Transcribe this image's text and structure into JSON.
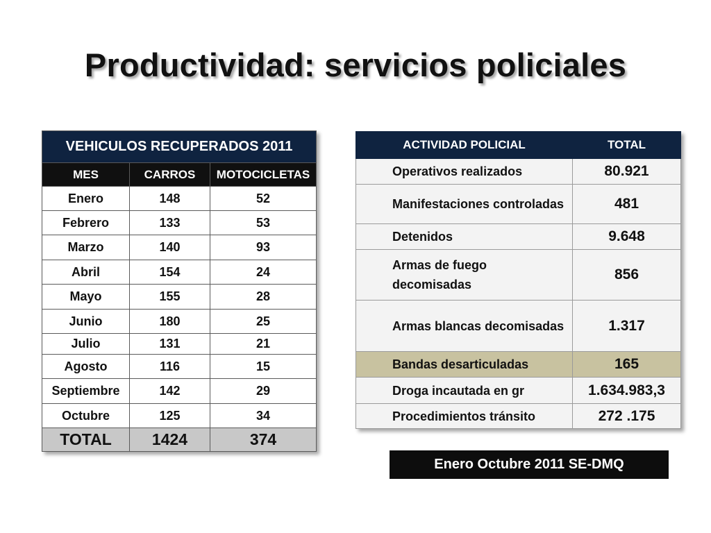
{
  "title": "Productividad: servicios policiales",
  "vehiculos": {
    "heading": "VEHICULOS  RECUPERADOS 2011",
    "columns": [
      "MES",
      "CARROS",
      "MOTOCICLETAS"
    ],
    "rows": [
      [
        "Enero",
        "148",
        "52"
      ],
      [
        "Febrero",
        "133",
        "53"
      ],
      [
        "Marzo",
        "140",
        "93"
      ],
      [
        "Abril",
        "154",
        "24"
      ],
      [
        "Mayo",
        "155",
        "28"
      ],
      [
        "Junio",
        "180",
        "25"
      ],
      [
        "Julio",
        "131",
        "21"
      ],
      [
        "Agosto",
        "116",
        "15"
      ],
      [
        "Septiembre",
        "142",
        "29"
      ],
      [
        "Octubre",
        "125",
        "34"
      ]
    ],
    "total": [
      "TOTAL",
      "1424",
      "374"
    ]
  },
  "actividad": {
    "columns": [
      "ACTIVIDAD POLICIAL",
      "TOTAL"
    ],
    "rows": [
      {
        "label": "Operativos realizados",
        "value": "80.921",
        "highlight": false
      },
      {
        "label": "Manifestaciones controladas",
        "value": "481",
        "highlight": false
      },
      {
        "label": "Detenidos",
        "value": "9.648",
        "highlight": false
      },
      {
        "label": "Armas de fuego decomisadas",
        "value": "856",
        "highlight": false
      },
      {
        "label": "Armas blancas decomisadas",
        "value": "1.317",
        "highlight": false
      },
      {
        "label": "Bandas desarticuladas",
        "value": "165",
        "highlight": true
      },
      {
        "label": "Droga incautada en gr",
        "value": "1.634.983,3",
        "highlight": false
      },
      {
        "label": "Procedimientos tránsito",
        "value": "272 .175",
        "highlight": false
      }
    ]
  },
  "footer": "Enero Octubre 2011  SE-DMQ",
  "colors": {
    "header_navy": "#0f2340",
    "header_black": "#101010",
    "total_gray": "#c8c8c8",
    "highlight_tan": "#c8c2a0"
  }
}
